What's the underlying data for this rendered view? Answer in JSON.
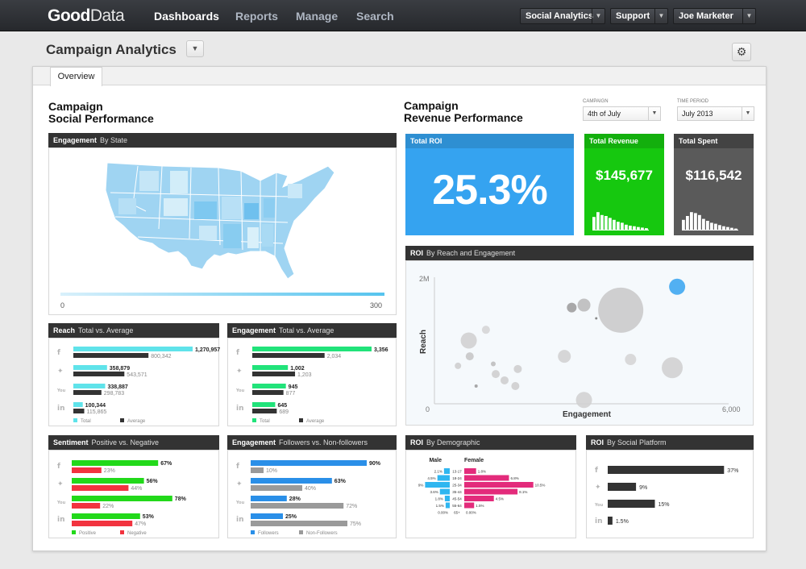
{
  "app": {
    "logo_bold": "Good",
    "logo_light": "Data",
    "nav": [
      "Dashboards",
      "Reports",
      "Manage",
      "Search"
    ],
    "project_menu": "Social Analytics",
    "support_menu": "Support",
    "user_menu": "Joe Marketer"
  },
  "dashboard": {
    "title": "Campaign Analytics",
    "tab": "Overview"
  },
  "social": {
    "title_line1": "Campaign",
    "title_line2": "Social Performance",
    "map": {
      "title": "Engagement",
      "subtitle": "By State",
      "legend_min": "0",
      "legend_max": "300"
    }
  },
  "revenue": {
    "title_line1": "Campaign",
    "title_line2": "Revenue Performance",
    "campaign_label": "CAMPAIGN",
    "campaign_value": "4th of July",
    "period_label": "TIME PERIOD",
    "period_value": "July 2013"
  },
  "kpis": {
    "roi": {
      "title": "Total ROI",
      "value": "25.3%",
      "color": "#35a3f0"
    },
    "revenue": {
      "title": "Total Revenue",
      "value": "$145,677",
      "color": "#16c80f",
      "sparkline": [
        0.7,
        0.95,
        0.8,
        0.75,
        0.65,
        0.55,
        0.45,
        0.4,
        0.3,
        0.25,
        0.22,
        0.18,
        0.15,
        0.12
      ]
    },
    "spent": {
      "title": "Total Spent",
      "value": "$116,542",
      "color": "#5a5a5a",
      "sparkline": [
        0.55,
        0.75,
        0.95,
        0.9,
        0.8,
        0.6,
        0.5,
        0.4,
        0.35,
        0.28,
        0.22,
        0.18,
        0.14,
        0.1
      ]
    }
  },
  "reach": {
    "title": "Reach",
    "subtitle": "Total vs. Average",
    "legend_total": "Total",
    "legend_avg": "Average",
    "color_total": "#5fe3ea",
    "color_avg": "#333333",
    "rows": [
      {
        "icon": "facebook-icon",
        "total": 1270957,
        "total_label": "1,270,957",
        "avg": 800342,
        "avg_label": "800,342"
      },
      {
        "icon": "twitter-icon",
        "total": 358879,
        "total_label": "358,879",
        "avg": 543571,
        "avg_label": "543,571"
      },
      {
        "icon": "youtube-icon",
        "total": 338887,
        "total_label": "338,887",
        "avg": 298783,
        "avg_label": "298,783"
      },
      {
        "icon": "linkedin-icon",
        "total": 100344,
        "total_label": "100,344",
        "avg": 115865,
        "avg_label": "115,865"
      }
    ]
  },
  "engagement_avg": {
    "title": "Engagement",
    "subtitle": "Total vs. Average",
    "legend_total": "Total",
    "legend_avg": "Average",
    "color_total": "#21e37a",
    "color_avg": "#333333",
    "rows": [
      {
        "icon": "facebook-icon",
        "total": 3356,
        "total_label": "3,356",
        "avg": 2034,
        "avg_label": "2,034"
      },
      {
        "icon": "twitter-icon",
        "total": 1002,
        "total_label": "1,002",
        "avg": 1203,
        "avg_label": "1,203"
      },
      {
        "icon": "youtube-icon",
        "total": 945,
        "total_label": "945",
        "avg": 877,
        "avg_label": "877"
      },
      {
        "icon": "linkedin-icon",
        "total": 645,
        "total_label": "645",
        "avg": 689,
        "avg_label": "689"
      }
    ]
  },
  "sentiment": {
    "title": "Sentiment",
    "subtitle": "Positive vs. Negative",
    "legend_a": "Positive",
    "legend_b": "Negative",
    "color_a": "#22d91a",
    "color_b": "#f2333f",
    "rows": [
      {
        "icon": "facebook-icon",
        "a": 67,
        "a_label": "67%",
        "b": 23,
        "b_label": "23%"
      },
      {
        "icon": "twitter-icon",
        "a": 56,
        "a_label": "56%",
        "b": 44,
        "b_label": "44%"
      },
      {
        "icon": "youtube-icon",
        "a": 78,
        "a_label": "78%",
        "b": 22,
        "b_label": "22%"
      },
      {
        "icon": "linkedin-icon",
        "a": 53,
        "a_label": "53%",
        "b": 47,
        "b_label": "47%"
      }
    ]
  },
  "engagement_followers": {
    "title": "Engagement",
    "subtitle": "Followers vs. Non-followers",
    "legend_a": "Followers",
    "legend_b": "Non-Followers",
    "color_a": "#2a8fe8",
    "color_b": "#9a9a9a",
    "rows": [
      {
        "icon": "facebook-icon",
        "a": 90,
        "a_label": "90%",
        "b": 10,
        "b_label": "10%"
      },
      {
        "icon": "twitter-icon",
        "a": 63,
        "a_label": "63%",
        "b": 40,
        "b_label": "40%"
      },
      {
        "icon": "youtube-icon",
        "a": 28,
        "a_label": "28%",
        "b": 72,
        "b_label": "72%"
      },
      {
        "icon": "linkedin-icon",
        "a": 25,
        "a_label": "25%",
        "b": 75,
        "b_label": "75%"
      }
    ]
  },
  "chart_data": [
    {
      "type": "scatter",
      "title": "ROI",
      "subtitle": "By Reach and Engagement",
      "xlabel": "Engagement",
      "ylabel": "Reach",
      "xlim": [
        0,
        6000
      ],
      "ylim": [
        0,
        2000000
      ],
      "x_ticks": [
        "0",
        "6,000"
      ],
      "y_ticks": [
        "2M"
      ],
      "points": [
        {
          "x": 4950,
          "y": 1850000,
          "size": 10,
          "color": "#35a3f0"
        },
        {
          "x": 3800,
          "y": 1480000,
          "size": 28,
          "color": "#c8c8c8"
        },
        {
          "x": 3050,
          "y": 1560000,
          "size": 8,
          "color": "#b8b8b8"
        },
        {
          "x": 2800,
          "y": 1520000,
          "size": 6,
          "color": "#9a9a9a"
        },
        {
          "x": 4850,
          "y": 570000,
          "size": 13,
          "color": "#cfcfcf"
        },
        {
          "x": 2650,
          "y": 750000,
          "size": 8,
          "color": "#d0d0d0"
        },
        {
          "x": 4000,
          "y": 700000,
          "size": 7,
          "color": "#d4d4d4"
        },
        {
          "x": 3050,
          "y": 60000,
          "size": 10,
          "color": "#d0d0d0"
        },
        {
          "x": 700,
          "y": 1000000,
          "size": 10,
          "color": "#cfcfcf"
        },
        {
          "x": 1050,
          "y": 1170000,
          "size": 5,
          "color": "#d4d4d4"
        },
        {
          "x": 720,
          "y": 750000,
          "size": 5,
          "color": "#c4c4c4"
        },
        {
          "x": 480,
          "y": 600000,
          "size": 4,
          "color": "#cccccc"
        },
        {
          "x": 1700,
          "y": 550000,
          "size": 5,
          "color": "#cccccc"
        },
        {
          "x": 1250,
          "y": 470000,
          "size": 5,
          "color": "#cccccc"
        },
        {
          "x": 1430,
          "y": 370000,
          "size": 5,
          "color": "#cccccc"
        },
        {
          "x": 1650,
          "y": 280000,
          "size": 5,
          "color": "#cccccc"
        },
        {
          "x": 1200,
          "y": 630000,
          "size": 3,
          "color": "#bbbbbb"
        },
        {
          "x": 850,
          "y": 280000,
          "size": 2,
          "color": "#999999"
        },
        {
          "x": 3300,
          "y": 1350000,
          "size": 1.5,
          "color": "#777777"
        }
      ]
    },
    {
      "type": "bar",
      "title": "ROI",
      "subtitle": "By Demographic",
      "series_labels": [
        "Male",
        "Female"
      ],
      "categories": [
        "13-17",
        "18-24",
        "25-34",
        "35-44",
        "45-54",
        "55-64",
        "65+"
      ],
      "male": [
        2.1,
        4.5,
        9.0,
        3.6,
        1.8,
        1.5,
        0.0
      ],
      "male_labels": [
        "2.1%",
        "4.5%",
        "9%",
        "3.6%",
        "1.8%",
        "1.5%",
        "0.00%"
      ],
      "female": [
        1.8,
        6.8,
        10.5,
        8.1,
        4.5,
        1.5,
        0.0
      ],
      "female_labels": [
        "1.8%",
        "6.8%",
        "10.5%",
        "8.1%",
        "4.5%",
        "1.5%",
        "0.00%"
      ],
      "colors": {
        "male": "#2fb6f0",
        "female": "#e32b7b"
      }
    },
    {
      "type": "bar",
      "title": "ROI",
      "subtitle": "By Social Platform",
      "categories": [
        "facebook-icon",
        "twitter-icon",
        "youtube-icon",
        "linkedin-icon"
      ],
      "values": [
        37,
        9,
        15,
        1.5
      ],
      "value_labels": [
        "37%",
        "9%",
        "15%",
        "1.5%"
      ],
      "color": "#333333"
    }
  ]
}
